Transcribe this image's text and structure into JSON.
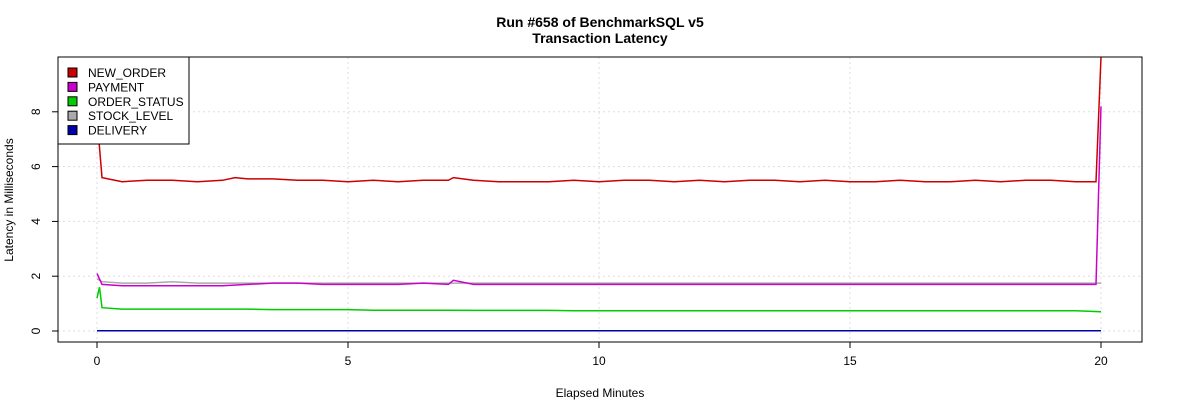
{
  "chart_data": {
    "type": "line",
    "title": "Run #658 of BenchmarkSQL v5",
    "subtitle": "Transaction Latency",
    "xlabel": "Elapsed Minutes",
    "ylabel": "Latency in Milliseconds",
    "xlim": [
      0,
      20
    ],
    "ylim": [
      0,
      10
    ],
    "x_ticks": [
      0,
      5,
      10,
      15,
      20
    ],
    "y_ticks": [
      0,
      2,
      4,
      6,
      8
    ],
    "grid": true,
    "legend_position": "top-left",
    "series": [
      {
        "name": "NEW_ORDER",
        "color": "#cc0000",
        "x": [
          0,
          0.1,
          0.5,
          1,
          1.5,
          2,
          2.5,
          2.75,
          3,
          3.5,
          4,
          4.5,
          5,
          5.5,
          6,
          6.5,
          7,
          7.1,
          7.5,
          8,
          8.5,
          9,
          9.5,
          10,
          10.5,
          11,
          11.5,
          12,
          12.5,
          13,
          13.5,
          14,
          14.5,
          15,
          15.5,
          16,
          16.5,
          17,
          17.5,
          18,
          18.5,
          19,
          19.5,
          19.9,
          20
        ],
        "values": [
          7.8,
          5.6,
          5.45,
          5.5,
          5.5,
          5.45,
          5.5,
          5.6,
          5.55,
          5.55,
          5.5,
          5.5,
          5.45,
          5.5,
          5.45,
          5.5,
          5.5,
          5.6,
          5.5,
          5.45,
          5.45,
          5.45,
          5.5,
          5.45,
          5.5,
          5.5,
          5.45,
          5.5,
          5.45,
          5.5,
          5.5,
          5.45,
          5.5,
          5.45,
          5.45,
          5.5,
          5.45,
          5.45,
          5.5,
          5.45,
          5.5,
          5.5,
          5.45,
          5.45,
          10.0
        ]
      },
      {
        "name": "PAYMENT",
        "color": "#cc00cc",
        "x": [
          0,
          0.1,
          0.5,
          1,
          1.5,
          2,
          2.5,
          3,
          3.5,
          4,
          4.5,
          5,
          5.5,
          6,
          6.5,
          7,
          7.1,
          7.5,
          8,
          8.5,
          9,
          9.5,
          10,
          10.5,
          11,
          11.5,
          12,
          12.5,
          13,
          13.5,
          14,
          14.5,
          15,
          15.5,
          16,
          16.5,
          17,
          17.5,
          18,
          18.5,
          19,
          19.5,
          19.9,
          20
        ],
        "values": [
          2.1,
          1.7,
          1.65,
          1.65,
          1.65,
          1.65,
          1.65,
          1.7,
          1.75,
          1.75,
          1.7,
          1.7,
          1.7,
          1.7,
          1.75,
          1.7,
          1.85,
          1.7,
          1.7,
          1.7,
          1.7,
          1.7,
          1.7,
          1.7,
          1.7,
          1.7,
          1.7,
          1.7,
          1.7,
          1.7,
          1.7,
          1.7,
          1.7,
          1.7,
          1.7,
          1.7,
          1.7,
          1.7,
          1.7,
          1.7,
          1.7,
          1.7,
          1.7,
          8.2
        ]
      },
      {
        "name": "ORDER_STATUS",
        "color": "#00cc00",
        "x": [
          0,
          0.05,
          0.1,
          0.5,
          1,
          1.5,
          2,
          2.5,
          3,
          3.5,
          4,
          4.5,
          5,
          5.5,
          6,
          6.5,
          7,
          7.5,
          8,
          8.5,
          9,
          9.5,
          10,
          10.5,
          11,
          11.5,
          12,
          12.5,
          13,
          13.5,
          14,
          14.5,
          15,
          15.5,
          16,
          16.5,
          17,
          17.5,
          18,
          18.5,
          19,
          19.5,
          20
        ],
        "values": [
          1.2,
          1.6,
          0.85,
          0.8,
          0.8,
          0.8,
          0.8,
          0.8,
          0.8,
          0.78,
          0.78,
          0.78,
          0.78,
          0.76,
          0.76,
          0.76,
          0.76,
          0.75,
          0.75,
          0.75,
          0.75,
          0.74,
          0.74,
          0.74,
          0.74,
          0.74,
          0.74,
          0.74,
          0.74,
          0.74,
          0.74,
          0.74,
          0.74,
          0.74,
          0.74,
          0.74,
          0.74,
          0.74,
          0.74,
          0.74,
          0.74,
          0.74,
          0.7
        ]
      },
      {
        "name": "STOCK_LEVEL",
        "color": "#aaaaaa",
        "x": [
          0,
          0.1,
          0.5,
          1,
          1.5,
          2,
          2.5,
          3,
          3.5,
          4,
          4.5,
          5,
          5.5,
          6,
          6.5,
          7,
          7.5,
          8,
          8.5,
          9,
          9.5,
          10,
          10.5,
          11,
          11.5,
          12,
          12.5,
          13,
          13.5,
          14,
          14.5,
          15,
          15.5,
          16,
          16.5,
          17,
          17.5,
          18,
          18.5,
          19,
          19.5,
          20
        ],
        "values": [
          1.9,
          1.8,
          1.75,
          1.75,
          1.8,
          1.75,
          1.75,
          1.75,
          1.75,
          1.75,
          1.75,
          1.75,
          1.75,
          1.75,
          1.75,
          1.75,
          1.75,
          1.75,
          1.75,
          1.75,
          1.75,
          1.75,
          1.75,
          1.75,
          1.75,
          1.75,
          1.75,
          1.75,
          1.75,
          1.75,
          1.75,
          1.75,
          1.75,
          1.75,
          1.75,
          1.75,
          1.75,
          1.75,
          1.75,
          1.75,
          1.75,
          1.75
        ]
      },
      {
        "name": "DELIVERY",
        "color": "#0000aa",
        "x": [
          0,
          20
        ],
        "values": [
          0.01,
          0.01
        ]
      }
    ]
  }
}
